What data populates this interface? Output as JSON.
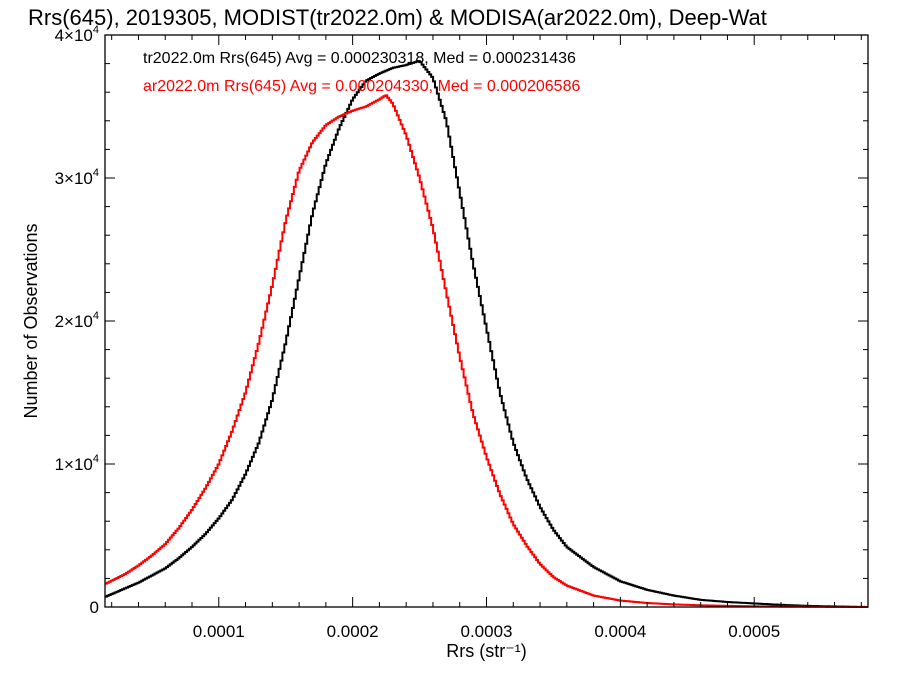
{
  "chart_data": {
    "type": "line",
    "title": "Rrs(645), 2019305, MODIST(tr2022.0m) & MODISA(ar2022.0m), Deep-Wat",
    "xlabel": "Rrs (str⁻¹)",
    "ylabel": "Number of Observations",
    "xlim": [
      1.5e-05,
      0.000585
    ],
    "ylim": [
      0,
      40000
    ],
    "x_ticks": [
      0.0001,
      0.0002,
      0.0003,
      0.0004,
      0.0005
    ],
    "x_tick_labels": [
      "0.0001",
      "0.0002",
      "0.0003",
      "0.0004",
      "0.0005"
    ],
    "y_ticks": [
      {
        "value": 0,
        "mant": "0",
        "exp": ""
      },
      {
        "value": 10000,
        "mant": "1×10",
        "exp": "4"
      },
      {
        "value": 20000,
        "mant": "2×10",
        "exp": "4"
      },
      {
        "value": 30000,
        "mant": "3×10",
        "exp": "4"
      },
      {
        "value": 40000,
        "mant": "4×10",
        "exp": "4"
      }
    ],
    "grid": false,
    "step": true,
    "legend_position": "top-left",
    "series": [
      {
        "name": "tr2022.0m Rrs(645) Avg = 0.000230318, Med = 0.000231436",
        "color": "#000000",
        "x": [
          1.5e-05,
          3e-05,
          4e-05,
          5e-05,
          6e-05,
          7e-05,
          8e-05,
          9e-05,
          0.0001,
          0.00011,
          0.00012,
          0.00013,
          0.00014,
          0.00015,
          0.00016,
          0.00017,
          0.00018,
          0.00019,
          0.0002,
          0.00021,
          0.00022,
          0.00023,
          0.00024,
          0.00025,
          0.00026,
          0.00027,
          0.00028,
          0.00029,
          0.0003,
          0.00031,
          0.00032,
          0.00033,
          0.00034,
          0.00035,
          0.00036,
          0.00038,
          0.0004,
          0.00042,
          0.00044,
          0.00046,
          0.00048,
          0.0005,
          0.00052,
          0.00054,
          0.00056,
          0.000585
        ],
        "y": [
          700,
          1300,
          1700,
          2200,
          2700,
          3400,
          4200,
          5100,
          6200,
          7500,
          9300,
          11500,
          14500,
          18500,
          23000,
          27500,
          31000,
          33500,
          35500,
          36800,
          37300,
          37700,
          37900,
          38200,
          37000,
          34000,
          29000,
          24000,
          19500,
          15000,
          11500,
          9000,
          7000,
          5400,
          4200,
          2800,
          1800,
          1200,
          800,
          500,
          350,
          250,
          150,
          80,
          40,
          0
        ]
      },
      {
        "name": "ar2022.0m Rrs(645) Avg = 0.000204330, Med = 0.000206586",
        "color": "#ff0000",
        "x": [
          1.5e-05,
          3e-05,
          4e-05,
          5e-05,
          6e-05,
          7e-05,
          8e-05,
          9e-05,
          0.0001,
          0.00011,
          0.00012,
          0.00013,
          0.00014,
          0.00015,
          0.00016,
          0.00017,
          0.00018,
          0.00019,
          0.0002,
          0.00021,
          0.00022,
          0.000225,
          0.00023,
          0.00024,
          0.00025,
          0.00026,
          0.00027,
          0.00028,
          0.00029,
          0.0003,
          0.00031,
          0.00032,
          0.00033,
          0.00034,
          0.00035,
          0.00036,
          0.00038,
          0.0004,
          0.00042,
          0.00044,
          0.00046,
          0.00048,
          0.0005,
          0.00052,
          0.00054,
          0.00056,
          0.000585
        ],
        "y": [
          1600,
          2300,
          2900,
          3600,
          4400,
          5500,
          6800,
          8300,
          10000,
          12300,
          15000,
          18500,
          22500,
          27000,
          30500,
          32500,
          33700,
          34300,
          34700,
          35000,
          35500,
          35800,
          35200,
          33000,
          30000,
          26500,
          22000,
          17500,
          13500,
          10500,
          7900,
          5800,
          4300,
          3000,
          2100,
          1500,
          800,
          450,
          280,
          180,
          120,
          80,
          50,
          30,
          20,
          10,
          0
        ]
      }
    ]
  }
}
